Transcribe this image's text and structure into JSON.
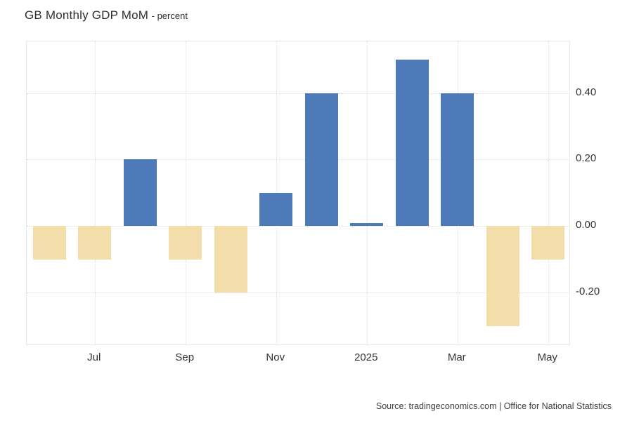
{
  "header": {
    "title": "GB Monthly GDP MoM",
    "subtitle": "- percent"
  },
  "footer": {
    "source": "Source: tradingeconomics.com | Office for National Statistics"
  },
  "chart_data": {
    "type": "bar",
    "title": "GB Monthly GDP MoM",
    "unit": "percent",
    "x": [
      "Jun 2024",
      "Jul 2024",
      "Aug 2024",
      "Sep 2024",
      "Oct 2024",
      "Nov 2024",
      "Dec 2024",
      "Jan 2025",
      "Feb 2025",
      "Mar 2025",
      "Apr 2025",
      "May 2025"
    ],
    "values": [
      -0.1,
      -0.1,
      0.2,
      -0.1,
      -0.2,
      0.1,
      0.4,
      0.01,
      0.5,
      0.4,
      -0.3,
      -0.1
    ],
    "x_ticks": [
      {
        "index": 1,
        "label": "Jul"
      },
      {
        "index": 3,
        "label": "Sep"
      },
      {
        "index": 5,
        "label": "Nov"
      },
      {
        "index": 7,
        "label": "2025"
      },
      {
        "index": 9,
        "label": "Mar"
      },
      {
        "index": 11,
        "label": "May"
      }
    ],
    "y_ticks": [
      {
        "value": 0.4,
        "label": "0.40"
      },
      {
        "value": 0.2,
        "label": "0.20"
      },
      {
        "value": 0.0,
        "label": "0.00"
      },
      {
        "value": -0.2,
        "label": "-0.20"
      }
    ],
    "ylim": [
      -0.36,
      0.555
    ],
    "colors": {
      "positive": "#4d7bba",
      "negative": "#f3deab"
    },
    "grid": "dotted",
    "legend_position": "none",
    "y_axis_position": "right"
  }
}
